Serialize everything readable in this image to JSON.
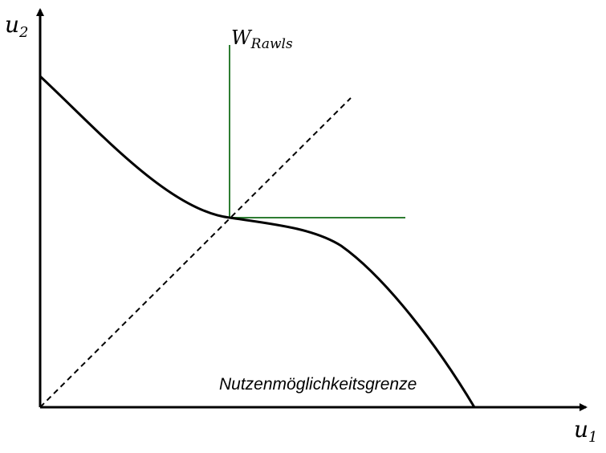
{
  "axes": {
    "x_label": "u",
    "x_subscript": "1",
    "y_label": "u",
    "y_subscript": "2"
  },
  "rawls": {
    "label": "W",
    "subscript": "Rawls",
    "color": "#2e7d32"
  },
  "frontier": {
    "label": "Nutzenmöglichkeitsgrenze",
    "color": "#000000"
  },
  "diagonal": {
    "style": "dashed"
  }
}
